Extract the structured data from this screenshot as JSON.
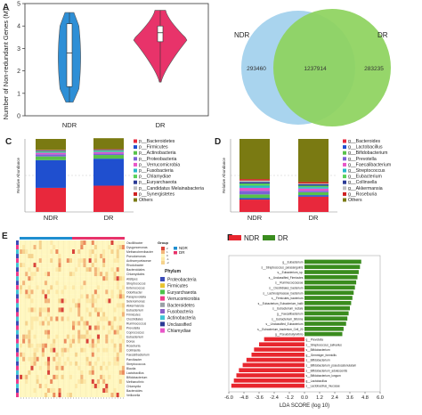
{
  "panel_labels": [
    "A",
    "B",
    "C",
    "D",
    "E",
    "F"
  ],
  "chart_data": [
    {
      "id": "A",
      "type": "violin",
      "ylabel": "Number of Non-redundant Genes (M)",
      "ylim": [
        0,
        5
      ],
      "categories": [
        "NDR",
        "DR"
      ],
      "colors": [
        "#2e8fd6",
        "#e8336a"
      ],
      "summary": [
        {
          "group": "NDR",
          "min": 0.6,
          "q1": 1.3,
          "median": 2.8,
          "q3": 4.1,
          "max": 4.6
        },
        {
          "group": "DR",
          "min": 1.5,
          "q1": 3.3,
          "median": 3.7,
          "q3": 4.0,
          "max": 4.7
        }
      ]
    },
    {
      "id": "B",
      "type": "venn",
      "sets": [
        {
          "name": "NDR",
          "unique": 293460,
          "color": "#a9d4ee"
        },
        {
          "name": "DR",
          "unique": 283235,
          "color": "#8ed35f"
        }
      ],
      "shared": 1237914,
      "labels": {
        "ndr": "NDR",
        "dr": "DR",
        "ndr_unique": "293460",
        "shared": "1237914",
        "dr_unique": "283235"
      }
    },
    {
      "id": "C",
      "type": "bar",
      "stacked": true,
      "ylabel": "Relative Abundance",
      "ylim": [
        0,
        1
      ],
      "categories": [
        "NDR",
        "DR"
      ],
      "series": [
        {
          "name": "p__Bacteroidetes",
          "color": "#e8283c",
          "values": [
            0.33,
            0.36
          ]
        },
        {
          "name": "p__Firmicutes",
          "color": "#1f4fcf",
          "values": [
            0.38,
            0.37
          ]
        },
        {
          "name": "p__Actinobacteria",
          "color": "#58c24a",
          "values": [
            0.05,
            0.05
          ]
        },
        {
          "name": "p__Proteobacteria",
          "color": "#7b62d6",
          "values": [
            0.03,
            0.02
          ]
        },
        {
          "name": "p__Verrucomicrobia",
          "color": "#e856c8",
          "values": [
            0.02,
            0.02
          ]
        },
        {
          "name": "p__Fusobacteria",
          "color": "#29b7c9",
          "values": [
            0.01,
            0.01
          ]
        },
        {
          "name": "p__Chlamydiae",
          "color": "#5ad15a",
          "values": [
            0.01,
            0.01
          ]
        },
        {
          "name": "p__Euryarchaeota",
          "color": "#2a3a95",
          "values": [
            0.01,
            0.01
          ]
        },
        {
          "name": "p__Candidatus Melainabacteria",
          "color": "#c0c0c0",
          "values": [
            0.005,
            0.005
          ]
        },
        {
          "name": "p__Synergistetes",
          "color": "#d02020",
          "values": [
            0.005,
            0.005
          ]
        },
        {
          "name": "Others",
          "color": "#7a7a12",
          "values": [
            0.15,
            0.15
          ]
        }
      ]
    },
    {
      "id": "D",
      "type": "bar",
      "stacked": true,
      "ylabel": "Relative Abundance",
      "ylim": [
        0,
        1
      ],
      "categories": [
        "NDR",
        "DR"
      ],
      "series": [
        {
          "name": "g__Bacteroides",
          "color": "#e8283c",
          "values": [
            0.17,
            0.21
          ]
        },
        {
          "name": "g__Lactobacillus",
          "color": "#1f4fcf",
          "values": [
            0.02,
            0.02
          ]
        },
        {
          "name": "g__Bifidobacterium",
          "color": "#58c24a",
          "values": [
            0.05,
            0.04
          ]
        },
        {
          "name": "g__Prevotella",
          "color": "#7b62d6",
          "values": [
            0.05,
            0.02
          ]
        },
        {
          "name": "g__Faecalibacterium",
          "color": "#e856c8",
          "values": [
            0.04,
            0.03
          ]
        },
        {
          "name": "g__Streptococcus",
          "color": "#29b7c9",
          "values": [
            0.03,
            0.02
          ]
        },
        {
          "name": "g__Eubacterium",
          "color": "#5ad15a",
          "values": [
            0.03,
            0.02
          ]
        },
        {
          "name": "g__Collinsella",
          "color": "#2a3a95",
          "values": [
            0.02,
            0.02
          ]
        },
        {
          "name": "g__Akkermansia",
          "color": "#c0c0c0",
          "values": [
            0.02,
            0.01
          ]
        },
        {
          "name": "g__Roseburia",
          "color": "#d02020",
          "values": [
            0.02,
            0.02
          ]
        },
        {
          "name": "Others",
          "color": "#7a7a12",
          "values": [
            0.55,
            0.59
          ]
        }
      ]
    },
    {
      "id": "E",
      "type": "heatmap",
      "legend_group_title": "Group",
      "groups": [
        {
          "name": "NDR",
          "color": "#1f8fd0"
        },
        {
          "name": "DR",
          "color": "#e8336a"
        }
      ],
      "legend_phylum_title": "Phylum",
      "phyla": [
        {
          "name": "Proteobacteria",
          "color": "#3b4bb8"
        },
        {
          "name": "Firmicutes",
          "color": "#e8c430"
        },
        {
          "name": "Euryarchaeota",
          "color": "#4cc24a"
        },
        {
          "name": "Verrucomicrobia",
          "color": "#ee3a8a"
        },
        {
          "name": "Bacteroidetes",
          "color": "#9aa0a6"
        },
        {
          "name": "Fusobacteria",
          "color": "#8a60c8"
        },
        {
          "name": "Actinobacteria",
          "color": "#3ec5d5"
        },
        {
          "name": "Unclassified",
          "color": "#2a3a95"
        },
        {
          "name": "Chlamydiae",
          "color": "#e856c8"
        }
      ],
      "scale_labels": [
        "2",
        "1",
        "0",
        "-1",
        "-2"
      ],
      "rows": [
        "Oscillibacter",
        "Dysgonomonas",
        "Methanobrevibacter",
        "Pseudomonas",
        "Actinomycetaceae",
        "Rhodobacter",
        "Bacteroidales",
        "Chlamydiales",
        "Alistipes",
        "Streptococcus",
        "Enterococcus",
        "Odoribacter",
        "Paraprevotella",
        "Selenomonas",
        "Akkermansia",
        "Eubacterium",
        "Firmicutes",
        "Clostridiales",
        "Ruminococcus",
        "Prevotella",
        "Coprococcus",
        "Eubacterium",
        "Dorea",
        "Roseburia",
        "Collinsella",
        "Faecalibacterium",
        "Parvibacter",
        "Streptococcus",
        "Blautia",
        "Lactobacillus",
        "Bifidobacterium",
        "Methanothrix",
        "Chlamydia",
        "Bacteroides",
        "Veillonella"
      ]
    },
    {
      "id": "F",
      "type": "bar",
      "orientation": "horizontal",
      "xlabel": "LDA SCORE (log 10)",
      "xlim": [
        -6,
        6
      ],
      "xticks": [
        -6.0,
        -4.8,
        -3.6,
        -2.4,
        -1.2,
        0.0,
        1.2,
        2.4,
        3.6,
        4.8,
        6.0
      ],
      "legend": [
        {
          "name": "NDR",
          "color": "#e8262e"
        },
        {
          "name": "DR",
          "color": "#3a8c1e"
        }
      ],
      "bars": [
        {
          "label": "g__Eubacterium",
          "value": 4.5,
          "group": "DR"
        },
        {
          "label": "s__Streptococcus_parasanguinis",
          "value": 4.4,
          "group": "DR"
        },
        {
          "label": "s__Eubacterium_sp.",
          "value": 4.3,
          "group": "DR"
        },
        {
          "label": "s__Unclassified_Firmicutes",
          "value": 4.2,
          "group": "DR"
        },
        {
          "label": "s__Ruminococcaceae",
          "value": 4.1,
          "group": "DR"
        },
        {
          "label": "s__Clostridiales_bacterium",
          "value": 4.0,
          "group": "DR"
        },
        {
          "label": "s__Lachnospiraceae_bacterium",
          "value": 3.9,
          "group": "DR"
        },
        {
          "label": "s__Firmicutes_bacterium",
          "value": 3.8,
          "group": "DR"
        },
        {
          "label": "s__Eubacterium_Eubacterium_hallii",
          "value": 3.7,
          "group": "DR"
        },
        {
          "label": "s__Eubacterium_rectale",
          "value": 3.6,
          "group": "DR"
        },
        {
          "label": "g__Faecalibacterium",
          "value": 3.5,
          "group": "DR"
        },
        {
          "label": "s__Eubacterium_biforme",
          "value": 3.4,
          "group": "DR"
        },
        {
          "label": "s__Unclassified_Eubacterium",
          "value": 3.3,
          "group": "DR"
        },
        {
          "label": "s__Eubacterium_bacterium_Cell_20",
          "value": 3.1,
          "group": "DR"
        },
        {
          "label": "g__Pseudobutyrivibrio",
          "value": 3.0,
          "group": "DR"
        },
        {
          "label": "g__Prevotella",
          "value": -3.2,
          "group": "NDR"
        },
        {
          "label": "s__Streptococcus_salivarius",
          "value": -3.6,
          "group": "NDR"
        },
        {
          "label": "s__Bifidobacterium",
          "value": -4.0,
          "group": "NDR"
        },
        {
          "label": "g__Gemmiger_formicilis",
          "value": -4.2,
          "group": "NDR"
        },
        {
          "label": "s__Bifidobacterium",
          "value": -4.6,
          "group": "NDR"
        },
        {
          "label": "s__Bifidobacterium_pseudocatenulatum",
          "value": -4.9,
          "group": "NDR"
        },
        {
          "label": "s__Bifidobacterium_adolescentis",
          "value": -5.2,
          "group": "NDR"
        },
        {
          "label": "s__Bifidobacterium_longum",
          "value": -5.4,
          "group": "NDR"
        },
        {
          "label": "g__Lactobacillus",
          "value": -5.6,
          "group": "NDR"
        },
        {
          "label": "s__Lactobacillus_mucosae",
          "value": -5.8,
          "group": "NDR"
        }
      ]
    }
  ]
}
